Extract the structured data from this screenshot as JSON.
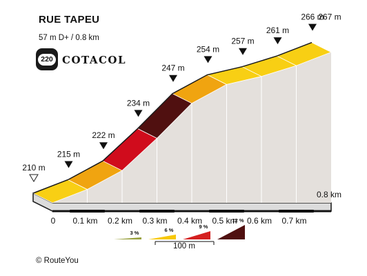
{
  "header": {
    "title": "RUE TAPEU",
    "stats": "57 m D+ / 0.8 km",
    "badge_number": "220",
    "brand": "COTACOL"
  },
  "footer": {
    "copyright": "©  RouteYou"
  },
  "colors": {
    "grade_3": "#98a03c",
    "grade_6": "#f8c808",
    "grade_9": "#d42020",
    "grade_12": "#501010",
    "segment_fills": [
      "#f8cf14",
      "#f0a410",
      "#d00c1c",
      "#501010",
      "#f0a410",
      "#f8cf14",
      "#f8cf14",
      "#f8cf14"
    ],
    "wall": "#e4e0dc",
    "base": "#dcdcdc"
  },
  "chart_data": {
    "type": "area",
    "title": "RUE TAPEU",
    "xlabel": "",
    "ylabel": "",
    "x_unit": "km",
    "y_unit": "m",
    "x": [
      0,
      0.1,
      0.2,
      0.3,
      0.4,
      0.5,
      0.6,
      0.7,
      0.8
    ],
    "elevation": [
      210,
      215,
      222,
      234,
      247,
      254,
      257,
      261,
      266
    ],
    "elevation_labels": [
      "210 m",
      "215 m",
      "222 m",
      "234 m",
      "247 m",
      "254 m",
      "257 m",
      "261 m",
      "266 m"
    ],
    "summit_label": "267 m",
    "x_tick_labels": [
      "0",
      "0.1 km",
      "0.2 km",
      "0.3 km",
      "0.4 km",
      "0.5 km",
      "0.6 km",
      "0.7 km",
      "0.8 km"
    ],
    "legend": {
      "grades": [
        "3 %",
        "6 %",
        "9 %",
        "12 %"
      ],
      "scale_label": "100 m"
    }
  }
}
